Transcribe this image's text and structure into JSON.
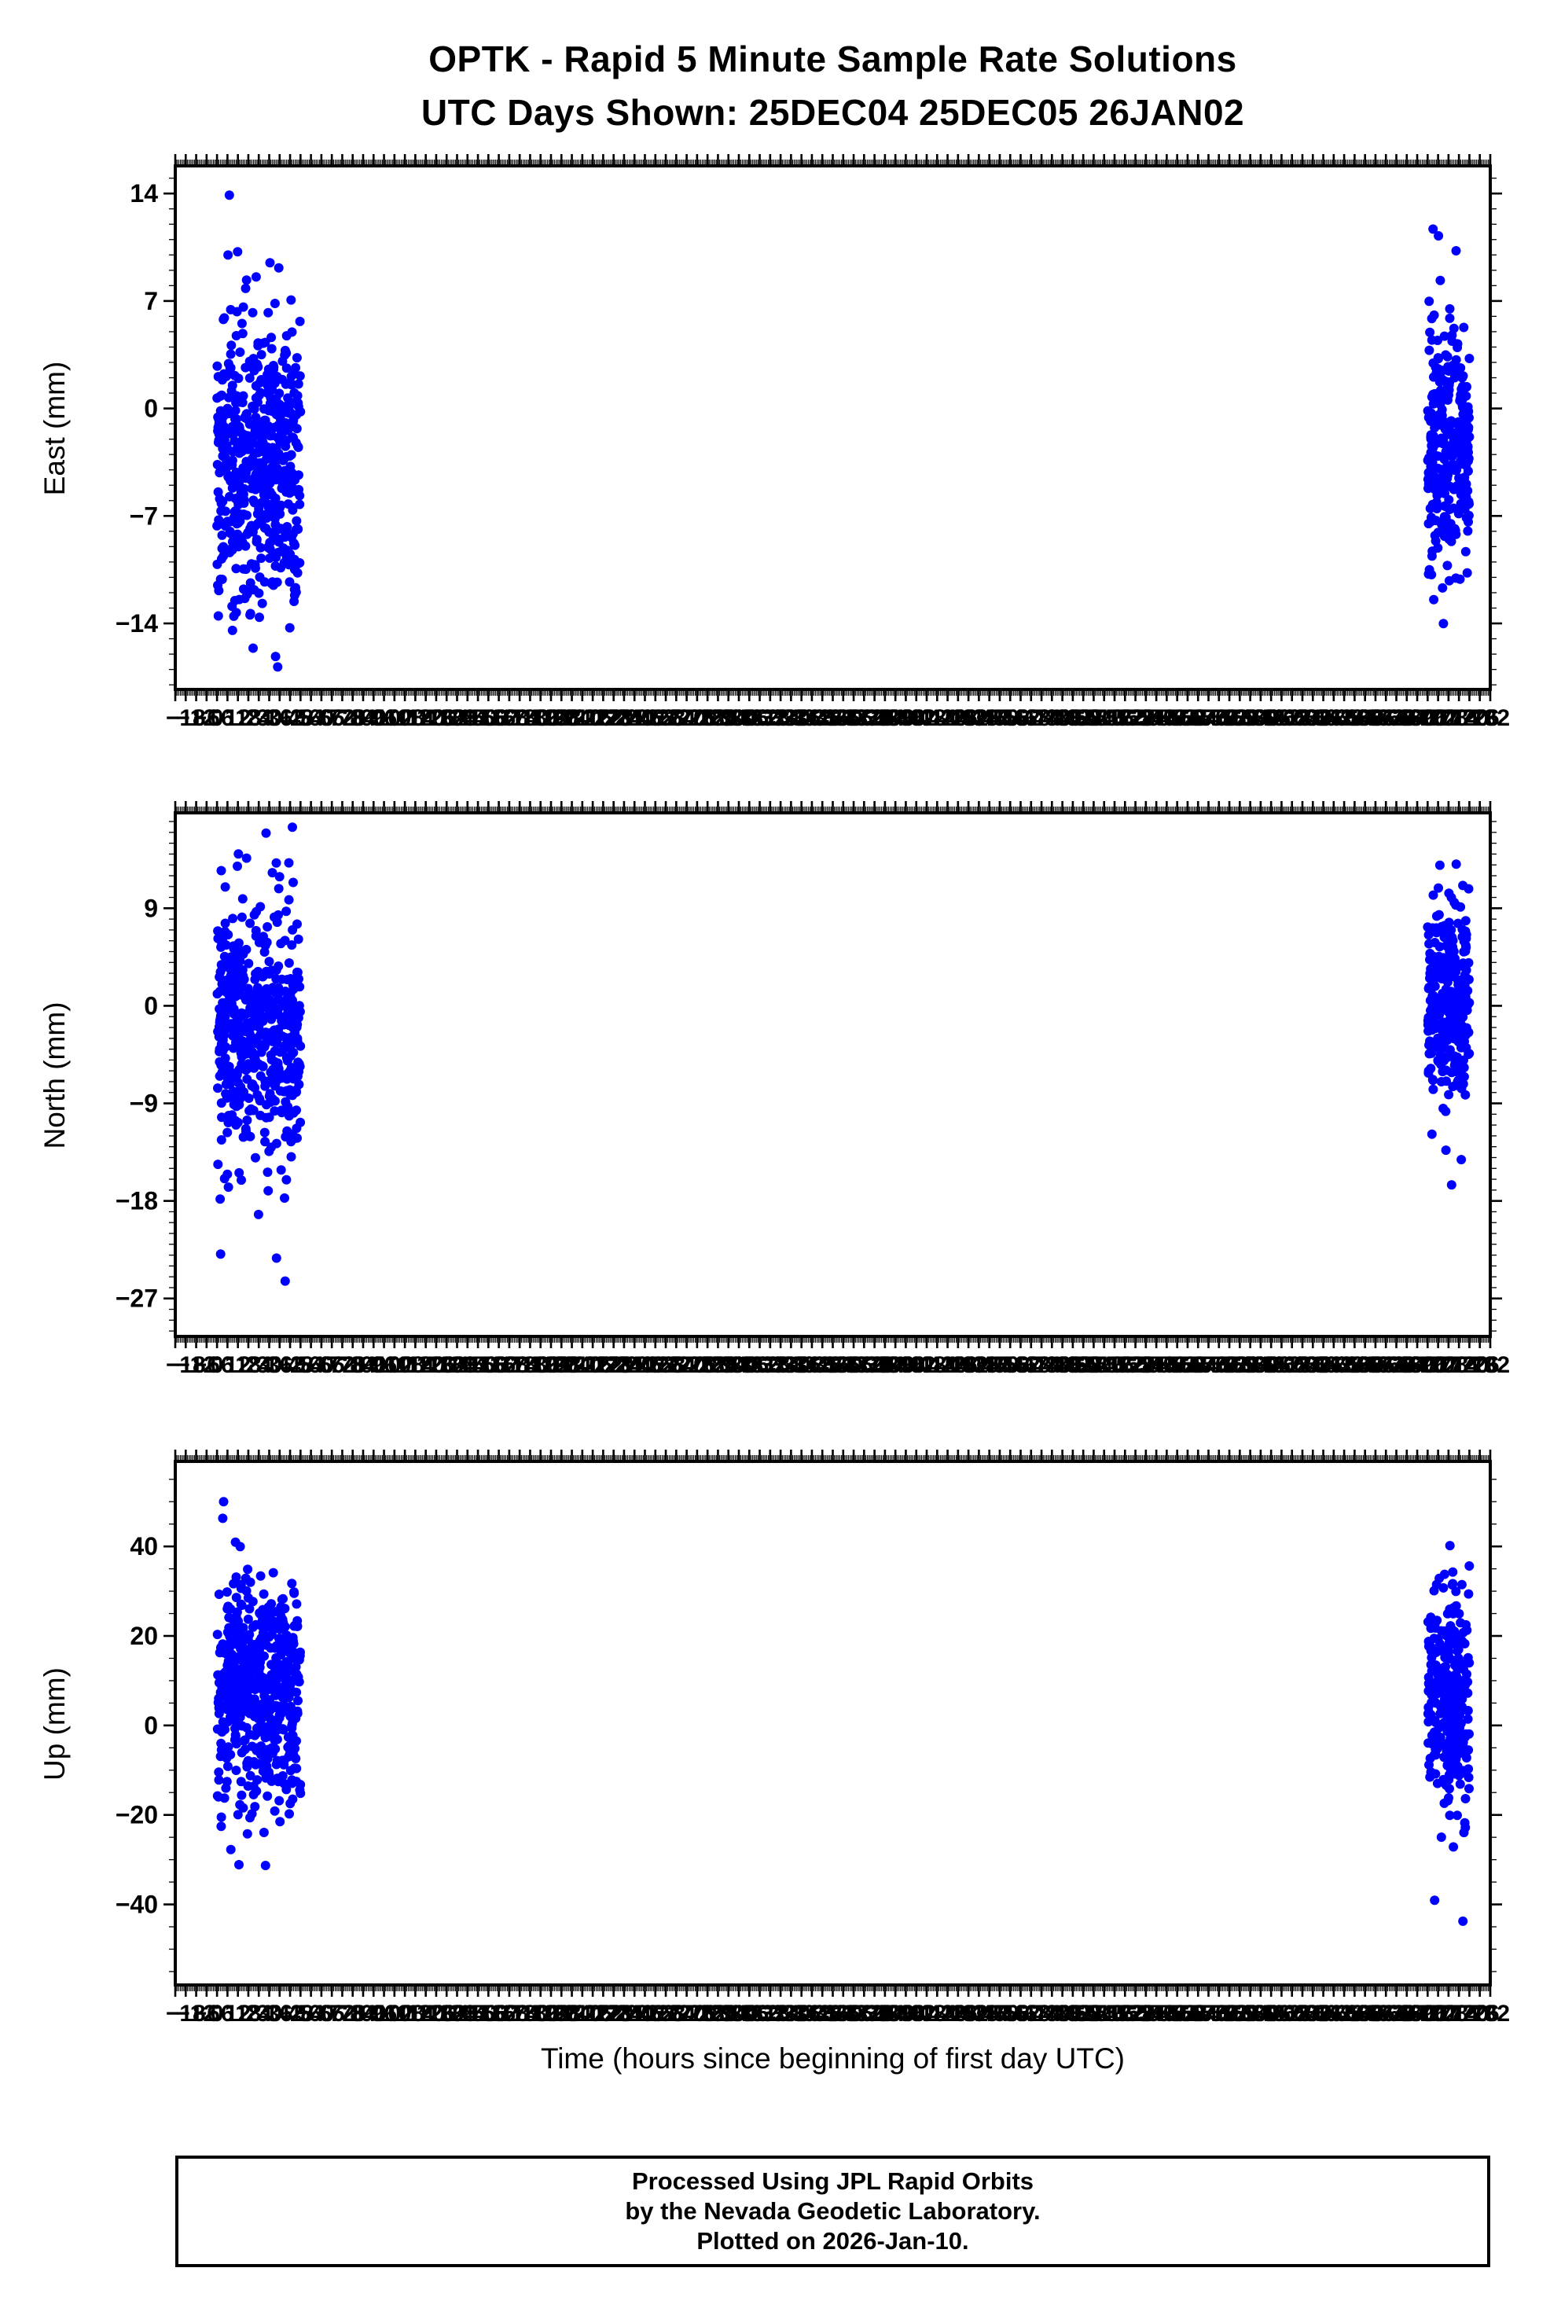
{
  "page": {
    "station": "OPTK",
    "title": "OPTK - Rapid 5 Minute Sample Rate Solutions",
    "subtitle": "UTC Days Shown:  25DEC04 25DEC05 26JAN02",
    "utc_days": [
      "25DEC04",
      "25DEC05",
      "26JAN02"
    ],
    "x_axis_title": "Time (hours since beginning of first day UTC)",
    "footer_lines": [
      "Processed Using JPL Rapid Orbits",
      "by the Nevada Geodetic Laboratory.",
      "Plotted on 2026-Jan-10."
    ]
  },
  "seed": 1337,
  "chart_data": [
    {
      "type": "scatter",
      "component": "East",
      "ylabel": "East (mm)",
      "point_color": "#0000ff",
      "x_unit": "hours since beginning of first day UTC",
      "xlim": [
        -24,
        732
      ],
      "xtick_major_step": 6,
      "xtick_minor_step": 1,
      "xtick_label_start": -18,
      "ylim": [
        -18.3,
        15.8
      ],
      "yticks": [
        14,
        7,
        0,
        -7,
        -14
      ],
      "ytick_minor_step": 1,
      "clusters": [
        {
          "label": "25DEC04+25DEC05",
          "x_range": [
            0,
            48
          ],
          "n": 560,
          "y_mean": -3.5,
          "y_std": 4.2,
          "tail_frac": 0.12,
          "y_tail_std": 7.5,
          "y_min": -17.0,
          "y_max": 14.4
        },
        {
          "label": "26JAN02",
          "x_range": [
            696,
            720
          ],
          "n": 300,
          "y_mean": -2.8,
          "y_std": 3.8,
          "tail_frac": 0.1,
          "y_tail_std": 7.0,
          "y_min": -16.0,
          "y_max": 13.3
        }
      ]
    },
    {
      "type": "scatter",
      "component": "North",
      "ylabel": "North (mm)",
      "point_color": "#0000ff",
      "x_unit": "hours since beginning of first day UTC",
      "xlim": [
        -24,
        732
      ],
      "xtick_major_step": 6,
      "xtick_minor_step": 1,
      "xtick_label_start": -18,
      "ylim": [
        -30.5,
        17.8
      ],
      "yticks": [
        9,
        0,
        -9,
        -18,
        -27
      ],
      "ytick_minor_step": 1,
      "clusters": [
        {
          "label": "25DEC04+25DEC05",
          "x_range": [
            0,
            48
          ],
          "n": 560,
          "y_mean": -2.5,
          "y_std": 5.0,
          "tail_frac": 0.15,
          "y_tail_std": 11.0,
          "y_min": -29.0,
          "y_max": 17.0
        },
        {
          "label": "26JAN02",
          "x_range": [
            696,
            720
          ],
          "n": 300,
          "y_mean": 0.5,
          "y_std": 4.5,
          "tail_frac": 0.1,
          "y_tail_std": 8.0,
          "y_min": -18.5,
          "y_max": 13.5
        }
      ]
    },
    {
      "type": "scatter",
      "component": "Up",
      "ylabel": "Up (mm)",
      "point_color": "#0000ff",
      "x_unit": "hours since beginning of first day UTC",
      "xlim": [
        -24,
        732
      ],
      "xtick_major_step": 6,
      "xtick_minor_step": 1,
      "xtick_label_start": -18,
      "ylim": [
        -58,
        59
      ],
      "yticks": [
        40,
        20,
        0,
        -20,
        -40
      ],
      "ytick_minor_step": 5,
      "clusters": [
        {
          "label": "25DEC04+25DEC05",
          "x_range": [
            0,
            48
          ],
          "n": 560,
          "y_mean": 7.0,
          "y_std": 12.0,
          "tail_frac": 0.12,
          "y_tail_std": 22.0,
          "y_min": -33.0,
          "y_max": 57.5
        },
        {
          "label": "26JAN02",
          "x_range": [
            696,
            720
          ],
          "n": 300,
          "y_mean": 5.0,
          "y_std": 12.0,
          "tail_frac": 0.12,
          "y_tail_std": 20.0,
          "y_min": -55.0,
          "y_max": 43.0
        }
      ]
    }
  ]
}
